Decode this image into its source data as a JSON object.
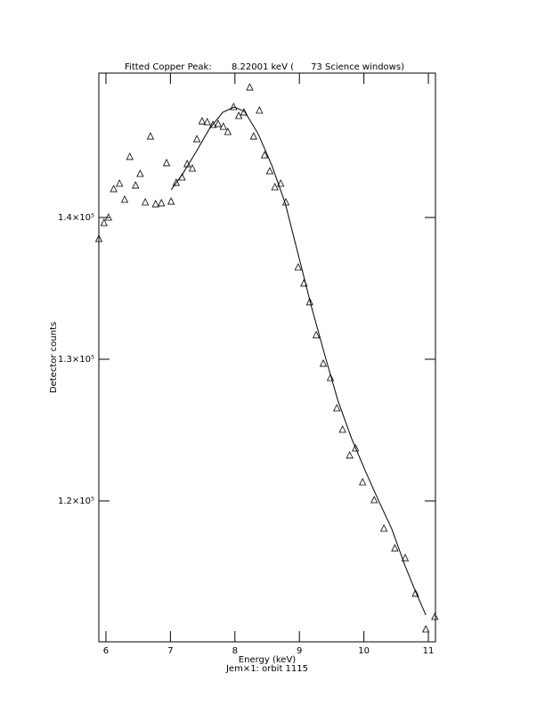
{
  "chart_data": {
    "type": "scatter",
    "title": "Fitted Copper Peak:       8.22001 keV (      73 Science windows)",
    "x_label": "Energy (keV)",
    "subtitle": "Jem×1: orbit 1115",
    "y_label": "Detector counts",
    "xlim": [
      5.89,
      11.11
    ],
    "ylim": [
      110060,
      150190
    ],
    "xticks": [
      6,
      7,
      8,
      9,
      10,
      11
    ],
    "yticks": [
      {
        "value": 120000,
        "label": "1.2×10⁵"
      },
      {
        "value": 130000,
        "label": "1.3×10⁵"
      },
      {
        "value": 140000,
        "label": "1.4×10⁵"
      }
    ],
    "series": [
      {
        "style": "triangle",
        "color": "#000000",
        "x": [
          5.89,
          5.97,
          6.04,
          6.12,
          6.21,
          6.29,
          6.37,
          6.46,
          6.53,
          6.61,
          6.69,
          6.77,
          6.86,
          6.94,
          7.01,
          7.09,
          7.18,
          7.26,
          7.34,
          7.41,
          7.49,
          7.57,
          7.66,
          7.74,
          7.82,
          7.89,
          7.98,
          8.06,
          8.14,
          8.23,
          8.29,
          8.38,
          8.46,
          8.54,
          8.62,
          8.71,
          8.79,
          8.98,
          9.07,
          9.16,
          9.26,
          9.37,
          9.48,
          9.58,
          9.67,
          9.78,
          9.87,
          9.98,
          10.16,
          10.31,
          10.48,
          10.64,
          10.8,
          10.96,
          11.1
        ],
        "values": [
          138490,
          139620,
          140000,
          142010,
          142390,
          141260,
          144280,
          142260,
          143080,
          141070,
          145720,
          140940,
          141010,
          143840,
          141130,
          142450,
          142830,
          143770,
          143460,
          145530,
          146790,
          146730,
          146540,
          146600,
          146410,
          146040,
          147800,
          147170,
          147420,
          149180,
          145720,
          147550,
          144400,
          143270,
          142140,
          142390,
          141070,
          136480,
          135350,
          134030,
          131700,
          129690,
          128680,
          126540,
          125030,
          123210,
          123710,
          121320,
          120060,
          118050,
          116660,
          115970,
          113460,
          110940,
          111820
        ]
      },
      {
        "style": "line",
        "color": "#000000",
        "x": [
          7.01,
          7.19,
          7.4,
          7.6,
          7.81,
          7.99,
          8.15,
          8.36,
          8.57,
          8.78,
          8.98,
          9.19,
          9.4,
          9.6,
          9.81,
          10.02,
          10.23,
          10.43,
          10.64,
          10.78,
          10.96
        ],
        "values": [
          141950,
          143080,
          144650,
          146230,
          147420,
          147800,
          147480,
          145910,
          143710,
          141010,
          137420,
          133650,
          130190,
          127040,
          124400,
          122140,
          120000,
          118050,
          115410,
          113840,
          111950
        ]
      }
    ]
  }
}
